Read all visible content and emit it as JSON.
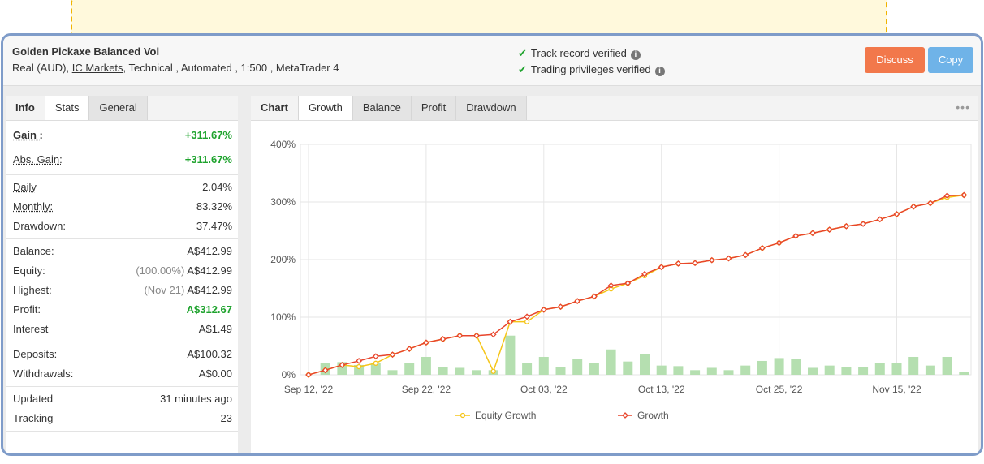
{
  "header": {
    "title": "Golden Pickaxe Balanced Vol",
    "account_type": "Real (AUD),",
    "broker": "IC Markets",
    "details": ", Technical , Automated , 1:500 , MetaTrader 4",
    "verifications": [
      "Track record verified",
      "Trading privileges verified"
    ],
    "buttons": [
      "Discuss",
      "Copy"
    ]
  },
  "stats": {
    "tabs": [
      "Info",
      "Stats",
      "General"
    ],
    "active_tab": 1,
    "groups": [
      [
        {
          "label": "Gain :",
          "value": "+311.67%",
          "color": "#1fa32e",
          "underline": true,
          "bold": true
        },
        {
          "label": "Abs. Gain:",
          "value": "+311.67%",
          "color": "#1fa32e",
          "underline": true
        }
      ],
      [
        {
          "label": "Daily",
          "value": "2.04%",
          "underline": true
        },
        {
          "label": "Monthly:",
          "value": "83.32%",
          "underline": true
        },
        {
          "label": "Drawdown:",
          "value": "37.47%"
        }
      ],
      [
        {
          "label": "Balance:",
          "value": "A$412.99"
        },
        {
          "label": "Equity:",
          "note": "(100.00%)",
          "value": "A$412.99"
        },
        {
          "label": "Highest:",
          "note": "(Nov 21)",
          "value": "A$412.99"
        },
        {
          "label": "Profit:",
          "value": "A$312.67",
          "color": "#1fa32e"
        },
        {
          "label": "Interest",
          "value": "A$1.49"
        }
      ],
      [
        {
          "label": "Deposits:",
          "value": "A$100.32"
        },
        {
          "label": "Withdrawals:",
          "value": "A$0.00"
        }
      ],
      [
        {
          "label": "Updated",
          "value": "31 minutes ago"
        },
        {
          "label": "Tracking",
          "value": "23"
        }
      ]
    ]
  },
  "chart_tabs": [
    "Chart",
    "Growth",
    "Balance",
    "Profit",
    "Drawdown"
  ],
  "active_chart_tab": 1,
  "chart_data": {
    "type": "line",
    "categories": [
      "Sep 12, '22",
      null,
      null,
      null,
      null,
      null,
      null,
      "Sep 22, '22",
      null,
      null,
      null,
      null,
      null,
      null,
      "Oct 03, '22",
      null,
      null,
      null,
      null,
      null,
      null,
      "Oct 13, '22",
      null,
      null,
      null,
      null,
      null,
      null,
      "Oct 25, '22",
      null,
      null,
      null,
      null,
      null,
      null,
      "Nov 15, '22",
      null,
      null,
      null,
      null
    ],
    "series": [
      {
        "color": "#b5dfb0",
        "kind": "bar",
        "values": [
          0,
          20,
          22,
          17,
          20,
          8,
          20,
          31,
          13,
          12,
          8,
          8,
          68,
          20,
          31,
          13,
          28,
          20,
          44,
          23,
          36,
          16,
          15,
          8,
          12,
          8,
          16,
          24,
          29,
          28,
          12,
          16,
          13,
          13,
          20,
          21,
          31,
          16,
          31,
          5
        ]
      },
      {
        "name": "Equity Growth",
        "color": "#f5c518",
        "marker": "circle",
        "values": [
          0,
          8,
          17,
          14,
          20,
          35,
          45,
          56,
          62,
          68,
          68,
          6,
          92,
          92,
          113,
          118,
          128,
          136,
          149,
          159,
          172,
          187,
          193,
          194,
          199,
          202,
          208,
          220,
          229,
          241,
          246,
          252,
          258,
          262,
          270,
          279,
          292,
          298,
          308,
          312
        ]
      },
      {
        "name": "Growth",
        "color": "#e8452c",
        "marker": "diamond",
        "values": [
          0,
          8,
          17,
          24,
          32,
          35,
          45,
          56,
          62,
          68,
          68,
          70,
          92,
          101,
          113,
          118,
          128,
          136,
          155,
          159,
          175,
          187,
          193,
          194,
          199,
          202,
          208,
          220,
          229,
          241,
          246,
          252,
          258,
          262,
          270,
          279,
          292,
          298,
          311,
          312
        ]
      }
    ],
    "ylim": [
      0,
      400
    ],
    "yticks": [
      {
        "value": 0,
        "label": "0%"
      },
      {
        "value": 100,
        "label": "100%"
      },
      {
        "value": 200,
        "label": "200%"
      },
      {
        "value": 300,
        "label": "300%"
      },
      {
        "value": 400,
        "label": "400%"
      }
    ],
    "grid": true
  }
}
